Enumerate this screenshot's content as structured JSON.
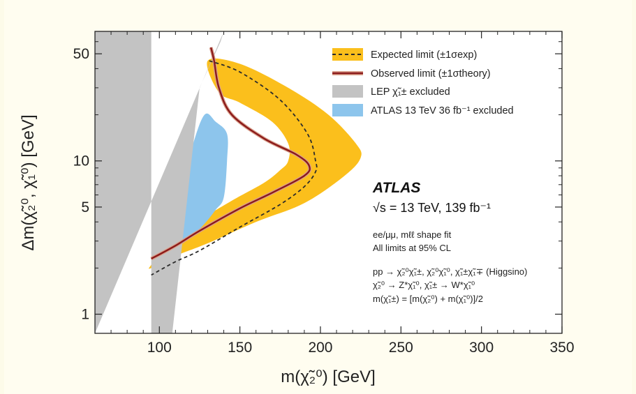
{
  "chart_data": {
    "type": "area",
    "xlabel": "m(χ̃₂⁰) [GeV]",
    "ylabel": "Δm(χ̃₂⁰, χ̃₁⁰) [GeV]",
    "xlim": [
      60,
      350
    ],
    "ylim": [
      0.75,
      70
    ],
    "yscale": "log",
    "x_ticks": [
      100,
      150,
      200,
      250,
      300,
      350
    ],
    "y_ticks": [
      1,
      5,
      10,
      50
    ],
    "grid": false,
    "legend_position": "top-right",
    "legend": [
      {
        "label": "Expected limit (±1σexp)",
        "style": "dashed-line-with-band",
        "color": "#2b2b2b",
        "band_color": "#fbbf1c"
      },
      {
        "label": "Observed limit (±1σtheory)",
        "style": "solid-line",
        "color": "#8b1a1a"
      },
      {
        "label": "LEP χ̃₁± excluded",
        "style": "fill",
        "color": "#c3c3c3"
      },
      {
        "label": "ATLAS 13 TeV 36 fb⁻¹ excluded",
        "style": "fill",
        "color": "#8dc5ec"
      }
    ],
    "series": [
      {
        "name": "Expected limit (±1σexp)",
        "x": [
          131,
          150,
          175,
          192,
          197,
          197,
          190,
          175,
          150,
          125,
          110,
          95
        ],
        "y": [
          45,
          38,
          25,
          15,
          10,
          8.5,
          6.8,
          5.2,
          3.7,
          2.6,
          2.2,
          1.8
        ]
      },
      {
        "name": "Observed limit (±1σtheory)",
        "x": [
          132,
          134,
          137,
          145,
          165,
          185,
          193,
          190,
          170,
          150,
          125,
          110,
          95
        ],
        "y": [
          55,
          45,
          30,
          20,
          14,
          11,
          9.3,
          8.0,
          6.2,
          4.9,
          3.5,
          2.8,
          2.3
        ]
      }
    ],
    "expected_band_upper": {
      "x": [
        130,
        150,
        180,
        205,
        222,
        225,
        215,
        190,
        160,
        130,
        110,
        95
      ],
      "y": [
        45,
        43,
        30,
        20,
        13,
        10.5,
        8,
        5.3,
        4,
        2.9,
        2.4,
        2.0
      ]
    },
    "expected_band_lower": {
      "x": [
        137,
        150,
        170,
        180,
        180,
        175,
        165,
        145,
        120,
        105,
        95
      ],
      "y": [
        28,
        24,
        18,
        13,
        10,
        8.7,
        7.2,
        5.5,
        3.8,
        2.8,
        2.1
      ]
    },
    "lep_region": {
      "x": [
        60,
        60,
        95,
        95,
        108,
        125,
        138,
        140
      ],
      "y": [
        0.75,
        70,
        70,
        0.75,
        0.75,
        30,
        60,
        70
      ]
    },
    "atlas36_region": {
      "x": [
        95,
        110,
        120,
        128,
        135,
        142,
        142,
        140,
        135,
        125,
        110
      ],
      "y": [
        2.5,
        5,
        12,
        20,
        18,
        15,
        10,
        5.8,
        4.8,
        3.6,
        2.7
      ]
    },
    "annotations": [
      "ATLAS",
      "√s = 13 TeV, 139 fb⁻¹",
      "ee/μμ, mℓℓ shape fit",
      "All limits at 95% CL",
      "pp → χ̃₂⁰χ̃₁±, χ̃₂⁰χ̃₁⁰, χ̃₁±χ̃₁∓ (Higgsino)",
      "χ̃₂⁰ → Z*χ̃₁⁰, χ̃₁± → W*χ̃₁⁰",
      "m(χ̃₁±) = [m(χ̃₂⁰) + m(χ̃₁⁰)]/2"
    ]
  }
}
